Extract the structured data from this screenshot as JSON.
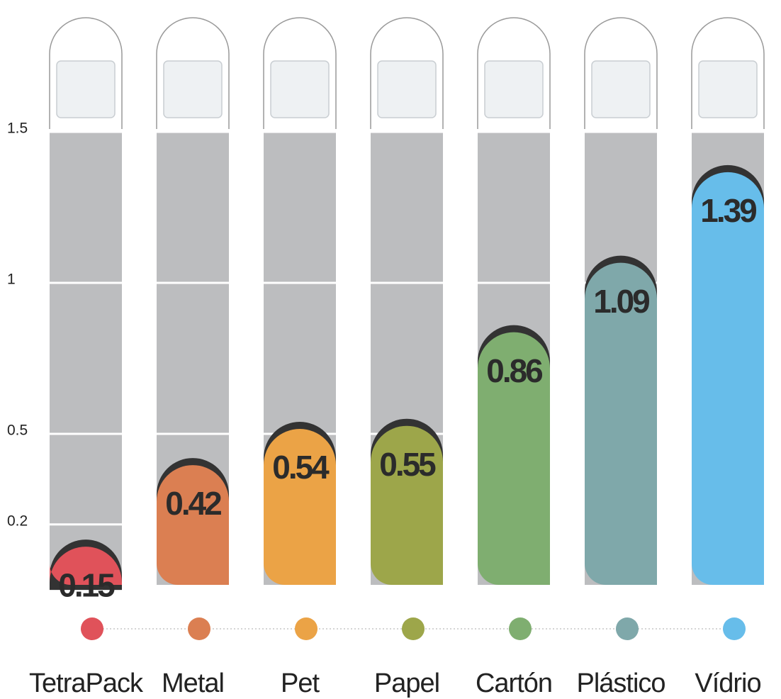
{
  "chart_data": {
    "type": "bar",
    "categories": [
      "TetraPack",
      "Metal",
      "Pet",
      "Papel",
      "Cartón",
      "Plástico",
      "Vídrio"
    ],
    "values": [
      0.15,
      0.42,
      0.54,
      0.55,
      0.86,
      1.09,
      1.39
    ],
    "colors": [
      "#e0525a",
      "#db7f52",
      "#eba346",
      "#9da64a",
      "#7fae70",
      "#7fa8aa",
      "#67bdea"
    ],
    "ylim": [
      0,
      1.5
    ],
    "yticks": [
      0.2,
      0.5,
      1,
      1.5
    ],
    "grid": true
  }
}
